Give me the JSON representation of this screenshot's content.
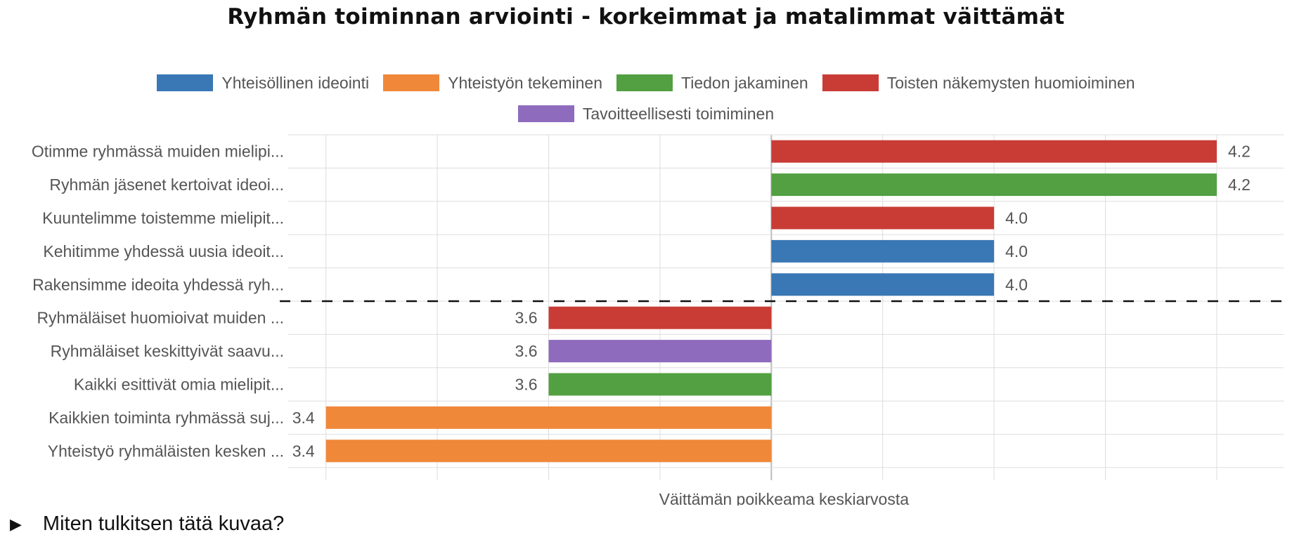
{
  "page": {
    "title": "Ryhmän toiminnan arviointi - korkeimmat ja matalimmat väittämät",
    "explain_label": "Miten tulkitsen tätä kuvaa?",
    "explain_icon": "triangle-right-icon"
  },
  "chart_data": {
    "type": "bar",
    "orientation": "horizontal",
    "title": "Ryhmän toiminnan arviointi - korkeimmat ja matalimmat väittämät",
    "xlabel": "Väittämän poikkeama keskiarvosta",
    "ylabel": "",
    "baseline": 3.8,
    "xlim": [
      3.38,
      4.26
    ],
    "grid": true,
    "legend_position": "top",
    "series": [
      {
        "name": "Yhteisöllinen ideointi",
        "color": "#3a78b5"
      },
      {
        "name": "Yhteistyön tekeminen",
        "color": "#f0883a"
      },
      {
        "name": "Tiedon jakaminen",
        "color": "#52a041"
      },
      {
        "name": "Toisten näkemysten huomioiminen",
        "color": "#c93c36"
      },
      {
        "name": "Tavoitteellisesti toimiminen",
        "color": "#8e6bbd"
      }
    ],
    "categories": [
      "Otimme ryhmässä muiden mielipi...",
      "Ryhmän jäsenet kertoivat ideoi...",
      "Kuuntelimme toistemme mielipit...",
      "Kehitimme yhdessä uusia ideoit...",
      "Rakensimme ideoita yhdessä ryh...",
      "Ryhmäläiset huomioivat muiden ...",
      "Ryhmäläiset keskittyivät saavu...",
      "Kaikki esittivät omia mielipit...",
      "Kaikkien toiminta ryhmässä suj...",
      "Yhteistyö ryhmäläisten kesken ..."
    ],
    "values": [
      4.2,
      4.2,
      4.0,
      4.0,
      4.0,
      3.6,
      3.6,
      3.6,
      3.4,
      3.4
    ],
    "value_labels": [
      "4.2",
      "4.2",
      "4.0",
      "4.0",
      "4.0",
      "3.6",
      "3.6",
      "3.6",
      "3.4",
      "3.4"
    ],
    "bar_series": [
      "Toisten näkemysten huomioiminen",
      "Tiedon jakaminen",
      "Toisten näkemysten huomioiminen",
      "Yhteisöllinen ideointi",
      "Yhteisöllinen ideointi",
      "Toisten näkemysten huomioiminen",
      "Tavoitteellisesti toimiminen",
      "Tiedon jakaminen",
      "Yhteistyön tekeminen",
      "Yhteistyön tekeminen"
    ],
    "divider_after_index": 4
  }
}
